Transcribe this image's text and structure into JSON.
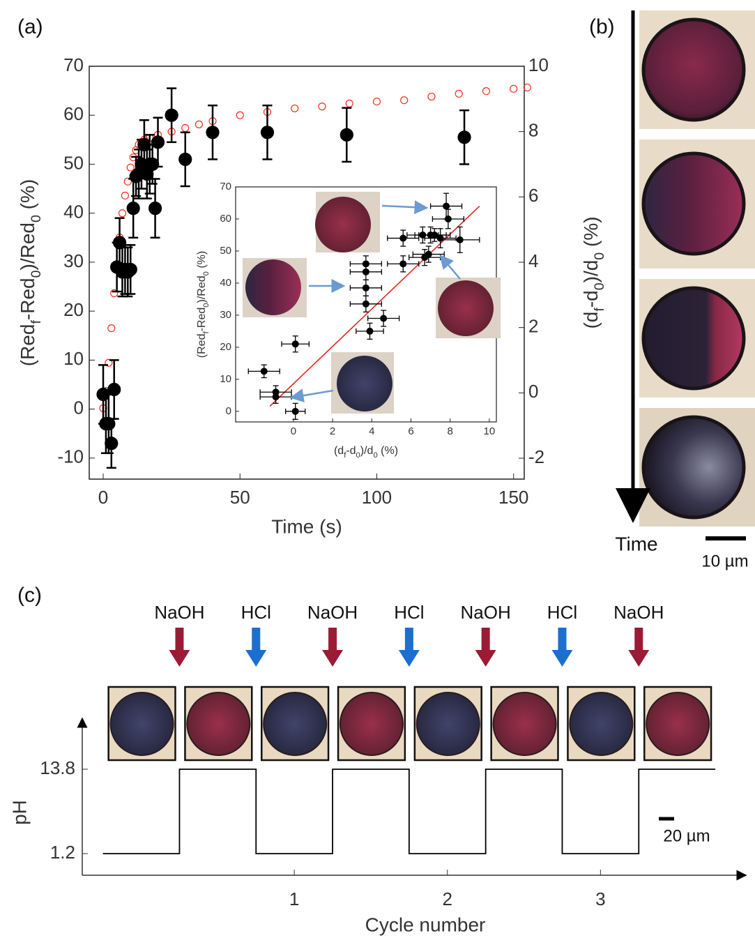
{
  "panels": {
    "a": "(a)",
    "b": "(b)",
    "c": "(c)"
  },
  "panel_b": {
    "time_label": "Time",
    "scale_bar": "10 µm"
  },
  "panel_c": {
    "scale_bar": "20 µm"
  },
  "chart_data": [
    {
      "type": "scatter",
      "xlabel": "Time (s)",
      "ylabel": [
        "(Red",
        "f",
        "-Red",
        "0",
        ")/Red",
        "0",
        " (%)"
      ],
      "y2label": [
        "(d",
        "f",
        "-d",
        "0",
        ")/d",
        "0",
        " (%)"
      ],
      "xlim": [
        -5.1,
        153.9
      ],
      "xticks": [
        0,
        50,
        100,
        150
      ],
      "ylim": [
        -14.3,
        70
      ],
      "yticks": [
        -10,
        0,
        10,
        20,
        30,
        40,
        50,
        60,
        70
      ],
      "y2lim": [
        -2.64,
        10
      ],
      "y2ticks": [
        -2,
        0,
        2,
        4,
        6,
        8,
        10
      ],
      "series": [
        {
          "color": "#ff2a1a",
          "axis": "y2",
          "marker": "open",
          "x": [
            0,
            1,
            2,
            3,
            4,
            5,
            6,
            7,
            8,
            9,
            10,
            11,
            12,
            13,
            14,
            15,
            17,
            20,
            25,
            30,
            35,
            40,
            50,
            60,
            70,
            80,
            90,
            100,
            110,
            120,
            130,
            140,
            150,
            155
          ],
          "values": [
            -0.47,
            0.06,
            0.92,
            1.98,
            3.05,
            3.9,
            4.76,
            5.5,
            6.04,
            6.47,
            6.9,
            7.21,
            7.43,
            7.6,
            7.68,
            7.75,
            7.81,
            7.9,
            8.0,
            8.11,
            8.22,
            8.32,
            8.5,
            8.6,
            8.71,
            8.77,
            8.86,
            8.92,
            8.96,
            9.07,
            9.16,
            9.24,
            9.31,
            9.35
          ]
        },
        {
          "color": "#000000",
          "marker": "filled",
          "x": [
            0,
            1,
            2,
            3,
            4,
            5,
            6,
            7,
            8,
            9,
            10,
            11,
            12,
            13,
            14,
            15,
            16,
            17,
            18,
            19,
            20,
            25,
            30,
            40,
            60,
            89,
            132
          ],
          "values": [
            3,
            -3,
            -3,
            -7,
            4,
            29,
            34,
            28,
            28.5,
            28,
            28.5,
            41,
            47.5,
            48,
            50,
            54,
            48,
            50,
            50,
            41,
            54.5,
            60,
            51,
            56.5,
            56.5,
            56,
            55.5
          ],
          "errors": [
            6,
            6,
            6,
            5,
            6,
            5,
            5,
            5,
            5,
            5,
            5,
            6,
            4,
            5,
            5,
            5,
            5,
            6,
            4,
            6,
            5,
            5.5,
            5.5,
            5.5,
            5.5,
            5.5,
            5.5
          ]
        }
      ]
    },
    {
      "type": "scatter",
      "xlabel": [
        "(d",
        "f",
        "-d",
        "0",
        ")/d",
        "0",
        " (%)"
      ],
      "ylabel": [
        "(Red",
        "f",
        "-Red",
        "0",
        ")/Red",
        "0",
        " (%)"
      ],
      "xlim": [
        -2.95,
        10.36
      ],
      "xticks": [
        0,
        2,
        4,
        6,
        8,
        10
      ],
      "ylim": [
        -3.3,
        70
      ],
      "yticks": [
        0,
        10,
        20,
        30,
        40,
        50,
        60,
        70
      ],
      "color": "#000000",
      "x": [
        -1.5,
        -0.9,
        -0.9,
        0.1,
        0.1,
        3.7,
        3.7,
        3.7,
        3.7,
        3.9,
        4.6,
        5.6,
        5.6,
        6.6,
        6.7,
        6.9,
        7.0,
        7.8,
        7.9,
        7.5,
        8.5,
        7.2
      ],
      "values": [
        12.5,
        6,
        4.5,
        21,
        0,
        46,
        43.5,
        38.5,
        33.5,
        25,
        29,
        46,
        54,
        55,
        48,
        49,
        55,
        64,
        60,
        54,
        53.5,
        55
      ],
      "xerr": [
        0.8,
        0.8,
        0.8,
        0.7,
        0.5,
        0.8,
        0.8,
        0.8,
        0.8,
        0.7,
        0.8,
        0.8,
        0.8,
        0.8,
        0.8,
        0.8,
        0.8,
        0.8,
        0.8,
        0.8,
        1,
        0.8
      ],
      "yerr": [
        2,
        2,
        2,
        2.5,
        2.5,
        2.5,
        2.5,
        2.5,
        2.5,
        2.5,
        2.5,
        2.5,
        2.5,
        2.5,
        2.5,
        2.5,
        2.5,
        4,
        3,
        3,
        4,
        2
      ],
      "fit_line": {
        "color": "#e8231a",
        "x": [
          -1.2,
          9.5
        ],
        "values": [
          1.6,
          64
        ]
      }
    },
    {
      "type": "step",
      "xlabel": "Cycle number",
      "ylabel": "pH",
      "xlim": [
        -0.385,
        3.95
      ],
      "xticks": [
        1,
        2,
        3
      ],
      "ylim": [
        -2.03,
        21.4
      ],
      "yticks": [
        1.2,
        13.8
      ],
      "color": "#000000",
      "x": [
        -0.25,
        0.25,
        0.75,
        1.25,
        1.75,
        2.25,
        2.75,
        3.25,
        3.75
      ],
      "values": [
        1.2,
        13.8,
        1.2,
        13.8,
        1.2,
        13.8,
        1.2,
        13.8,
        13.8
      ],
      "annotations": [
        {
          "text": "NaOH",
          "color": "#9b1b35"
        },
        {
          "text": "HCl",
          "color": "#1a6fd1"
        },
        {
          "text": "NaOH",
          "color": "#9b1b35"
        },
        {
          "text": "HCl",
          "color": "#1a6fd1"
        },
        {
          "text": "NaOH",
          "color": "#9b1b35"
        },
        {
          "text": "HCl",
          "color": "#1a6fd1"
        },
        {
          "text": "NaOH",
          "color": "#9b1b35"
        }
      ]
    }
  ]
}
